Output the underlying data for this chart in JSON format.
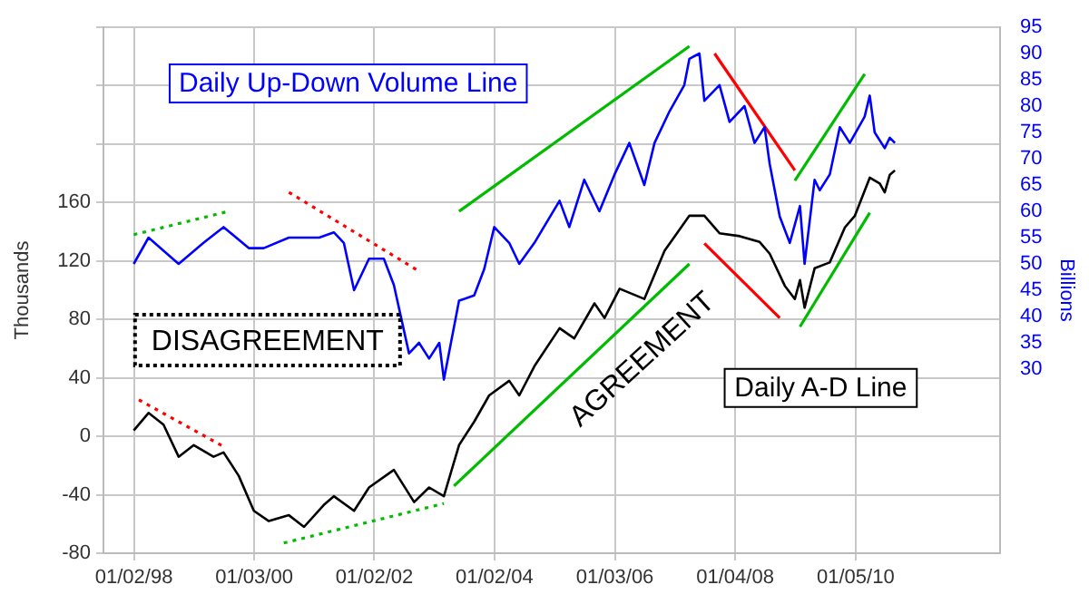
{
  "chart_data": {
    "type": "line",
    "ylabel": "Thousands",
    "y2label": "Billions",
    "annotations": [
      "DISAGREEMENT",
      "AGREEMENT"
    ],
    "xlim": [
      "1997-07",
      "2012-06"
    ],
    "xticks": [
      {
        "value": "1998-01-02",
        "label": "01/02/98"
      },
      {
        "value": "2000-01-03",
        "label": "01/03/00"
      },
      {
        "value": "2002-01-02",
        "label": "01/02/02"
      },
      {
        "value": "2004-01-02",
        "label": "01/02/04"
      },
      {
        "value": "2006-01-03",
        "label": "01/03/06"
      },
      {
        "value": "2008-01-04",
        "label": "01/04/08"
      },
      {
        "value": "2010-01-05",
        "label": "01/05/10"
      }
    ],
    "ylim": [
      -80,
      280
    ],
    "yticks": [
      -80,
      -40,
      0,
      40,
      80,
      120,
      160,
      {
        "value": 200,
        "label": null
      },
      {
        "value": 240,
        "label": null
      },
      {
        "value": 280,
        "label": null
      }
    ],
    "y2lim": [
      -5,
      95
    ],
    "y2ticks": [
      30,
      35,
      40,
      45,
      50,
      55,
      60,
      65,
      70,
      75,
      80,
      85,
      90,
      95
    ],
    "grid": true,
    "legend": false,
    "marker": "none",
    "series": [
      {
        "name": "Daily Up-Down Volume Line",
        "color": "#0000ff",
        "axis": "y2",
        "x": [
          "1998-01",
          "1998-04",
          "1998-10",
          "1999-03",
          "1999-07",
          "1999-12",
          "2000-03",
          "2000-08",
          "2001-02",
          "2001-05",
          "2001-07",
          "2001-09",
          "2001-12",
          "2002-03",
          "2002-05",
          "2002-08",
          "2002-10",
          "2002-12",
          "2003-02",
          "2003-03",
          "2003-06",
          "2003-09",
          "2003-11",
          "2004-01",
          "2004-04",
          "2004-06",
          "2004-09",
          "2005-02",
          "2005-04",
          "2005-07",
          "2005-10",
          "2006-01",
          "2006-04",
          "2006-07",
          "2006-09",
          "2006-12",
          "2007-03",
          "2007-04",
          "2007-06",
          "2007-07",
          "2007-10",
          "2007-12",
          "2008-03",
          "2008-05",
          "2008-07",
          "2008-08",
          "2008-10",
          "2008-12",
          "2009-02",
          "2009-03",
          "2009-05",
          "2009-06",
          "2009-08",
          "2009-10",
          "2009-12",
          "2010-03",
          "2010-04",
          "2010-05",
          "2010-07",
          "2010-08",
          "2010-09"
        ],
        "values": [
          50,
          55,
          50,
          54,
          57,
          53,
          53,
          55,
          55,
          56,
          54,
          45,
          51,
          51,
          46,
          33,
          35,
          32,
          35,
          28,
          43,
          44,
          49,
          57,
          54,
          50,
          54,
          62,
          57,
          66,
          60,
          67,
          73,
          65,
          73,
          79,
          84,
          89,
          90,
          81,
          84,
          77,
          80,
          73,
          76,
          69,
          59,
          54,
          61,
          50,
          66,
          64,
          67,
          76,
          73,
          78,
          82,
          75,
          72,
          74,
          73
        ]
      },
      {
        "name": "Daily A-D Line",
        "color": "#000000",
        "axis": "y",
        "x": [
          "1998-01",
          "1998-04",
          "1998-07",
          "1998-10",
          "1999-01",
          "1999-05",
          "1999-07",
          "1999-10",
          "2000-01",
          "2000-04",
          "2000-08",
          "2000-11",
          "2001-03",
          "2001-05",
          "2001-09",
          "2001-12",
          "2002-05",
          "2002-09",
          "2002-12",
          "2003-03",
          "2003-06",
          "2003-09",
          "2003-12",
          "2004-04",
          "2004-06",
          "2004-09",
          "2005-02",
          "2005-05",
          "2005-09",
          "2005-11",
          "2006-02",
          "2006-07",
          "2006-11",
          "2007-04",
          "2007-07",
          "2007-10",
          "2008-02",
          "2008-06",
          "2008-08",
          "2008-11",
          "2009-01",
          "2009-02",
          "2009-03",
          "2009-05",
          "2009-08",
          "2009-11",
          "2010-01",
          "2010-04",
          "2010-06",
          "2010-07",
          "2010-08",
          "2010-09"
        ],
        "values": [
          4,
          16,
          8,
          -14,
          -6,
          -14,
          -11,
          -27,
          -51,
          -58,
          -54,
          -62,
          -47,
          -41,
          -51,
          -35,
          -23,
          -45,
          -35,
          -41,
          -6,
          10,
          28,
          38,
          28,
          48,
          74,
          67,
          91,
          81,
          101,
          94,
          127,
          151,
          151,
          139,
          137,
          133,
          125,
          103,
          94,
          107,
          88,
          115,
          119,
          143,
          151,
          177,
          173,
          167,
          179,
          182
        ]
      },
      {
        "type": "line",
        "color": "#00bb00",
        "axis": "y",
        "line_style": "dotted",
        "x": [
          "1998-01",
          "1999-08"
        ],
        "values": [
          138,
          154
        ]
      },
      {
        "type": "line",
        "color": "#ff0000",
        "axis": "y",
        "line_style": "dotted",
        "x": [
          "2000-08",
          "2002-10"
        ],
        "values": [
          167,
          113
        ]
      },
      {
        "type": "line",
        "color": "#ff0000",
        "axis": "y",
        "line_style": "dotted",
        "x": [
          "1998-02",
          "1999-07"
        ],
        "values": [
          25,
          -7
        ]
      },
      {
        "type": "line",
        "color": "#00bb00",
        "axis": "y",
        "line_style": "dotted",
        "x": [
          "2000-07",
          "2003-03"
        ],
        "values": [
          -73,
          -46
        ]
      },
      {
        "type": "line",
        "color": "#00bb00",
        "axis": "y",
        "line_style": "solid",
        "x": [
          "2003-06",
          "2007-04"
        ],
        "values": [
          154,
          267
        ]
      },
      {
        "type": "line",
        "color": "#00bb00",
        "axis": "y",
        "line_style": "solid",
        "x": [
          "2003-05",
          "2007-04"
        ],
        "values": [
          -34,
          118
        ]
      },
      {
        "type": "line",
        "color": "#ff0000",
        "axis": "y",
        "line_style": "solid",
        "x": [
          "2007-09",
          "2009-01"
        ],
        "values": [
          262,
          182
        ]
      },
      {
        "type": "line",
        "color": "#ff0000",
        "axis": "y",
        "line_style": "solid",
        "x": [
          "2007-07",
          "2008-10"
        ],
        "values": [
          132,
          81
        ]
      },
      {
        "type": "line",
        "color": "#00bb00",
        "axis": "y",
        "line_style": "solid",
        "x": [
          "2009-01",
          "2010-03"
        ],
        "values": [
          175,
          248
        ]
      },
      {
        "type": "line",
        "color": "#00bb00",
        "axis": "y",
        "line_style": "solid",
        "x": [
          "2009-02",
          "2010-04"
        ],
        "values": [
          75,
          153
        ]
      }
    ]
  }
}
